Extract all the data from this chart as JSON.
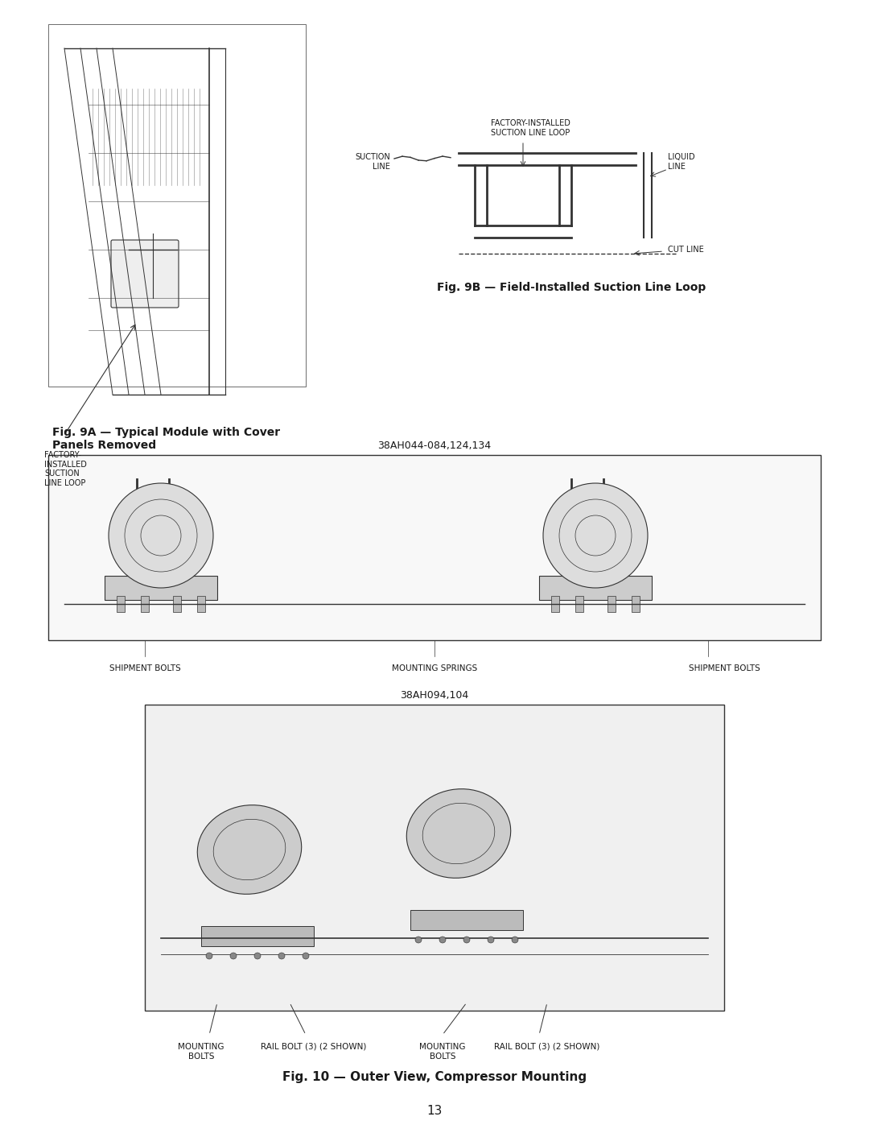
{
  "page_number": "13",
  "background_color": "#ffffff",
  "fig9a_caption": "Fig. 9A — Typical Module with Cover\nPanels Removed",
  "fig9b_caption": "Fig. 9B — Field-Installed Suction Line Loop",
  "fig10_caption": "Fig. 10 — Outer View, Compressor Mounting",
  "label_38ah044": "38AH044-084,124,134",
  "label_38ah094": "38AH094,104",
  "label_factory_9a": "FACTORY-\nINSTALLED\nSUCTION\nLINE LOOP",
  "label_suction_line": "SUCTION\nLINE",
  "label_factory_installed_loop": "FACTORY-INSTALLED\nSUCTION LINE LOOP",
  "label_liquid_line": "LIQUID\nLINE",
  "label_cut_line": "CUT LINE",
  "label_shipment_bolts_left": "SHIPMENT BOLTS",
  "label_mounting_springs": "MOUNTING SPRINGS",
  "label_shipment_bolts_right": "SHIPMENT BOLTS",
  "label_mounting_bolts_left": "MOUNTING\nBOLTS",
  "label_rail_bolt_left": "RAIL BOLT (3) (2 SHOWN)",
  "label_mounting_bolts_right": "MOUNTING\nBOLTS",
  "label_rail_bolt_right": "RAIL BOLT (3) (2 SHOWN)",
  "text_color": "#1a1a1a",
  "diagram_border_color": "#333333",
  "diagram_fill_color": "#f5f5f5"
}
